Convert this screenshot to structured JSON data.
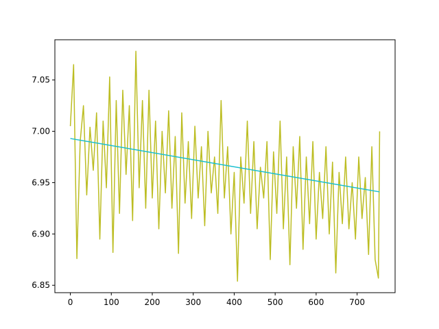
{
  "chart_data": {
    "type": "line",
    "xlim": [
      -37.75,
      792.75
    ],
    "ylim": [
      6.8428,
      7.0892
    ],
    "xticks": [
      0,
      100,
      200,
      300,
      400,
      500,
      600,
      700
    ],
    "yticks": [
      6.85,
      {
        "value": 6.9,
        "label": "6.90"
      },
      6.95,
      {
        "value": 7,
        "label": "7.00"
      },
      7.05
    ],
    "series": [
      {
        "color": "#bcbd22",
        "x": [
          0,
          8,
          16,
          24,
          32,
          40,
          48,
          56,
          64,
          72,
          80,
          88,
          96,
          104,
          112,
          120,
          128,
          136,
          144,
          152,
          160,
          168,
          176,
          184,
          192,
          200,
          208,
          216,
          224,
          232,
          240,
          248,
          256,
          264,
          272,
          280,
          288,
          296,
          304,
          312,
          320,
          328,
          336,
          344,
          352,
          360,
          368,
          376,
          384,
          392,
          400,
          408,
          416,
          424,
          432,
          440,
          448,
          456,
          464,
          472,
          480,
          488,
          496,
          504,
          512,
          520,
          528,
          536,
          544,
          552,
          560,
          568,
          576,
          584,
          592,
          600,
          608,
          616,
          624,
          632,
          640,
          648,
          656,
          664,
          672,
          680,
          688,
          696,
          704,
          712,
          720,
          728,
          736,
          744,
          752,
          755
        ],
        "values": [
          7.005,
          7.065,
          6.876,
          6.99,
          7.025,
          6.938,
          7.004,
          6.962,
          7.018,
          6.895,
          7.01,
          6.945,
          7.053,
          6.882,
          7.03,
          6.92,
          7.04,
          6.958,
          7.025,
          6.913,
          7.078,
          6.945,
          7.03,
          6.925,
          7.04,
          6.935,
          7.01,
          6.905,
          7.0,
          6.94,
          7.02,
          6.925,
          6.995,
          6.881,
          7.018,
          6.93,
          6.99,
          6.915,
          7.005,
          6.935,
          6.985,
          6.908,
          7.0,
          6.94,
          6.975,
          6.92,
          7.03,
          6.935,
          6.985,
          6.9,
          6.96,
          6.854,
          6.975,
          6.93,
          7.01,
          6.92,
          6.99,
          6.905,
          6.965,
          6.935,
          6.99,
          6.875,
          6.98,
          6.92,
          7.01,
          6.905,
          6.975,
          6.87,
          6.985,
          6.925,
          6.995,
          6.885,
          6.975,
          6.91,
          6.99,
          6.895,
          6.96,
          6.915,
          6.985,
          6.9,
          6.97,
          6.862,
          6.96,
          6.91,
          6.975,
          6.905,
          6.95,
          6.895,
          6.975,
          6.915,
          6.955,
          6.88,
          6.985,
          6.875,
          6.857,
          7.0
        ]
      },
      {
        "color": "#17becf",
        "x": [
          0,
          755
        ],
        "values": [
          6.993,
          6.941
        ]
      }
    ]
  }
}
